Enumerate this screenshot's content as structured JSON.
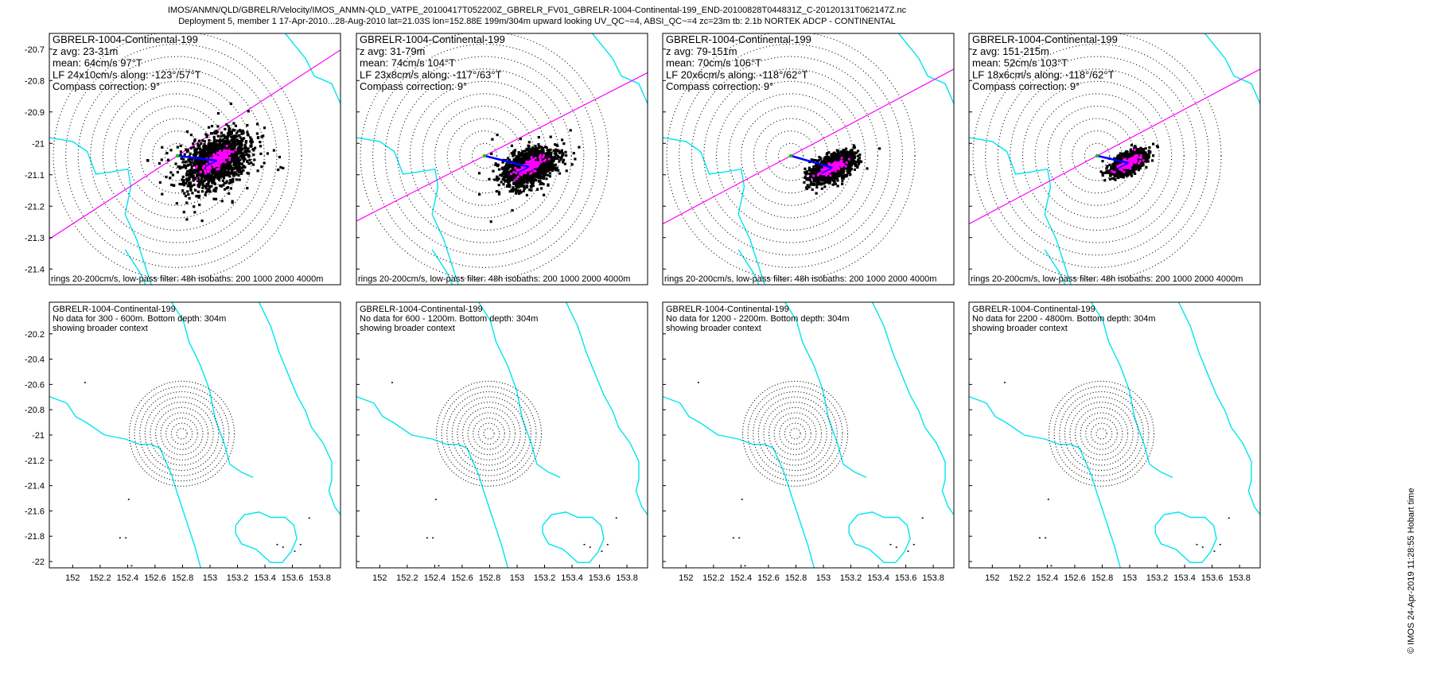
{
  "header": {
    "line1": "IMOS/ANMN/QLD/GBRELR/Velocity/IMOS_ANMN-QLD_VATPE_20100417T052200Z_GBRELR_FV01_GBRELR-1004-Continental-199_END-20100828T044831Z_C-20120131T062147Z.nc",
    "line2": "Deployment 5, member 1 17-Apr-2010...28-Aug-2010 lat=21.03S lon=152.88E 199m/304m upward looking UV_QC~=4, ABSI_QC~=4 zc=23m tb: 2.1b NORTEK ADCP - CONTINENTAL"
  },
  "watermark": "© IMOS 24-Apr-2019 11:28:55 Hobart time",
  "colors": {
    "scatter": "#000000",
    "lowpass": "#ff00ff",
    "mean_vector": "#0000ff",
    "major_axis": "#ff00ff",
    "isobath": "#00e5ee",
    "rings": "#000000",
    "start_marker": "#00cc00"
  },
  "chart_data": {
    "type": "scatter",
    "top_row": {
      "y_ticks": [
        "-20.7",
        "-20.8",
        "-20.9",
        "-21",
        "-21.1",
        "-21.2",
        "-21.3",
        "-21.4"
      ],
      "ylim": [
        -21.45,
        -20.65
      ],
      "rings_cm_s": [
        20,
        40,
        60,
        80,
        100,
        120,
        140,
        160,
        180,
        200
      ],
      "footer": "rings 20-200cm/s, low-pass filter: 48h isobaths: 200 1000 2000 4000m",
      "panels": [
        {
          "name": "GBRELR-1004-Continental-199",
          "zavg": "z avg: 23-31m",
          "mean": "mean: 64cm/s 97°T",
          "lf": "LF 24x10cm/s along: -123°/57°T",
          "compass": "Compass correction: 9°",
          "mean_speed_cm_s": 64,
          "mean_dir_deg": 97,
          "lf_major_cm_s": 24,
          "lf_minor_cm_s": 10,
          "along_deg": 57,
          "scatter_major_cm_s": 55,
          "scatter_minor_cm_s": 35,
          "scatter_points": 1500,
          "outlier_points": 60
        },
        {
          "name": "GBRELR-1004-Continental-199",
          "zavg": "z avg: 31-79m",
          "mean": "mean: 74cm/s 104°T",
          "lf": "LF 23x8cm/s along: -117°/63°T",
          "compass": "Compass correction: 9°",
          "mean_speed_cm_s": 74,
          "mean_dir_deg": 104,
          "lf_major_cm_s": 23,
          "lf_minor_cm_s": 8,
          "along_deg": 63,
          "scatter_major_cm_s": 45,
          "scatter_minor_cm_s": 26,
          "scatter_points": 1400,
          "outlier_points": 12
        },
        {
          "name": "GBRELR-1004-Continental-199",
          "zavg": "z avg: 79-151m",
          "mean": "mean: 70cm/s 106°T",
          "lf": "LF 20x6cm/s along: -118°/62°T",
          "compass": "Compass correction: 9°",
          "mean_speed_cm_s": 70,
          "mean_dir_deg": 106,
          "lf_major_cm_s": 20,
          "lf_minor_cm_s": 6,
          "along_deg": 62,
          "scatter_major_cm_s": 38,
          "scatter_minor_cm_s": 18,
          "scatter_points": 1300,
          "outlier_points": 0
        },
        {
          "name": "GBRELR-1004-Continental-199",
          "zavg": "z avg: 151-215m",
          "mean": "mean: 52cm/s 103°T",
          "lf": "LF 18x6cm/s along: -118°/62°T",
          "compass": "Compass correction: 9°",
          "mean_speed_cm_s": 52,
          "mean_dir_deg": 103,
          "lf_major_cm_s": 18,
          "lf_minor_cm_s": 6,
          "along_deg": 62,
          "scatter_major_cm_s": 30,
          "scatter_minor_cm_s": 14,
          "scatter_points": 1200,
          "outlier_points": 0
        }
      ]
    },
    "bottom_row": {
      "y_ticks": [
        "-20.2",
        "-20.4",
        "-20.6",
        "-20.8",
        "-21",
        "-21.2",
        "-21.4",
        "-21.6",
        "-21.8",
        "-22"
      ],
      "ylim": [
        -22.05,
        -19.95
      ],
      "x_ticks": [
        "152",
        "152.2",
        "152.4",
        "152.6",
        "152.8",
        "153",
        "153.2",
        "153.4",
        "153.6",
        "153.8"
      ],
      "xlim": [
        151.83,
        153.95
      ],
      "panels": [
        {
          "name": "GBRELR-1004-Continental-199",
          "nodata": "No data for 300 - 600m. Bottom depth: 304m",
          "context": "showing broader context"
        },
        {
          "name": "GBRELR-1004-Continental-199",
          "nodata": "No data for 600 - 1200m. Bottom depth: 304m",
          "context": "showing broader context"
        },
        {
          "name": "GBRELR-1004-Continental-199",
          "nodata": "No data for 1200 - 2200m. Bottom depth: 304m",
          "context": "showing broader context"
        },
        {
          "name": "GBRELR-1004-Continental-199",
          "nodata": "No data for 2200 - 4800m. Bottom depth: 304m",
          "context": "showing broader context"
        }
      ]
    }
  }
}
